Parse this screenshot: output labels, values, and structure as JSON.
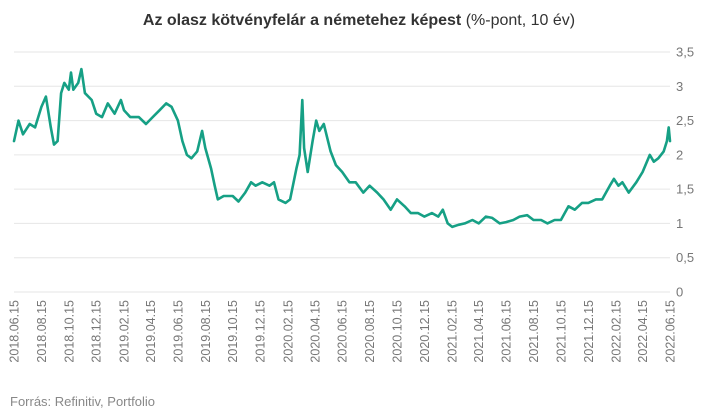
{
  "chart_data": {
    "type": "line",
    "title_bold": "Az olasz kötvényfelár a németehez képest",
    "title_rest": " (%-pont, 10 év)",
    "source": "Forrás: Refinitiv, Portfolio",
    "ylim": [
      0,
      3.5
    ],
    "yticks": [
      {
        "v": 0,
        "label": "0"
      },
      {
        "v": 0.5,
        "label": "0,5"
      },
      {
        "v": 1,
        "label": "1"
      },
      {
        "v": 1.5,
        "label": "1,5"
      },
      {
        "v": 2,
        "label": "2"
      },
      {
        "v": 2.5,
        "label": "2,5"
      },
      {
        "v": 3,
        "label": "3"
      },
      {
        "v": 3.5,
        "label": "3,5"
      }
    ],
    "x_tick_labels": [
      "2018.06.15",
      "2018.08.15",
      "2018.10.15",
      "2018.12.15",
      "2019.02.15",
      "2019.04.15",
      "2019.06.15",
      "2019.08.15",
      "2019.10.15",
      "2019.12.15",
      "2020.02.15",
      "2020.04.15",
      "2020.06.15",
      "2020.08.15",
      "2020.10.15",
      "2020.12.15",
      "2021.02.15",
      "2021.04.15",
      "2021.06.15",
      "2021.08.15",
      "2021.10.15",
      "2021.12.15",
      "2022.02.15",
      "2022.04.15",
      "2022.06.15"
    ],
    "grid": true,
    "line_color": "#16a085",
    "series": [
      {
        "values": [
          {
            "x": "2018.06.15",
            "y": 2.2
          },
          {
            "x": "2018.06.25",
            "y": 2.5
          },
          {
            "x": "2018.07.05",
            "y": 2.3
          },
          {
            "x": "2018.07.20",
            "y": 2.45
          },
          {
            "x": "2018.08.01",
            "y": 2.4
          },
          {
            "x": "2018.08.15",
            "y": 2.7
          },
          {
            "x": "2018.08.25",
            "y": 2.85
          },
          {
            "x": "2018.09.05",
            "y": 2.4
          },
          {
            "x": "2018.09.12",
            "y": 2.15
          },
          {
            "x": "2018.09.20",
            "y": 2.2
          },
          {
            "x": "2018.09.28",
            "y": 2.9
          },
          {
            "x": "2018.10.05",
            "y": 3.05
          },
          {
            "x": "2018.10.15",
            "y": 2.95
          },
          {
            "x": "2018.10.20",
            "y": 3.2
          },
          {
            "x": "2018.10.25",
            "y": 2.95
          },
          {
            "x": "2018.11.05",
            "y": 3.05
          },
          {
            "x": "2018.11.12",
            "y": 3.25
          },
          {
            "x": "2018.11.20",
            "y": 2.9
          },
          {
            "x": "2018.12.05",
            "y": 2.8
          },
          {
            "x": "2018.12.15",
            "y": 2.6
          },
          {
            "x": "2018.12.28",
            "y": 2.55
          },
          {
            "x": "2019.01.10",
            "y": 2.75
          },
          {
            "x": "2019.01.25",
            "y": 2.6
          },
          {
            "x": "2019.02.08",
            "y": 2.8
          },
          {
            "x": "2019.02.15",
            "y": 2.65
          },
          {
            "x": "2019.03.01",
            "y": 2.55
          },
          {
            "x": "2019.03.20",
            "y": 2.55
          },
          {
            "x": "2019.04.05",
            "y": 2.45
          },
          {
            "x": "2019.04.20",
            "y": 2.55
          },
          {
            "x": "2019.05.05",
            "y": 2.65
          },
          {
            "x": "2019.05.20",
            "y": 2.75
          },
          {
            "x": "2019.06.01",
            "y": 2.7
          },
          {
            "x": "2019.06.15",
            "y": 2.5
          },
          {
            "x": "2019.06.25",
            "y": 2.2
          },
          {
            "x": "2019.07.05",
            "y": 2.0
          },
          {
            "x": "2019.07.15",
            "y": 1.95
          },
          {
            "x": "2019.07.28",
            "y": 2.05
          },
          {
            "x": "2019.08.08",
            "y": 2.35
          },
          {
            "x": "2019.08.15",
            "y": 2.1
          },
          {
            "x": "2019.08.28",
            "y": 1.8
          },
          {
            "x": "2019.09.05",
            "y": 1.55
          },
          {
            "x": "2019.09.12",
            "y": 1.35
          },
          {
            "x": "2019.09.25",
            "y": 1.4
          },
          {
            "x": "2019.10.15",
            "y": 1.4
          },
          {
            "x": "2019.10.28",
            "y": 1.32
          },
          {
            "x": "2019.11.12",
            "y": 1.45
          },
          {
            "x": "2019.11.25",
            "y": 1.6
          },
          {
            "x": "2019.12.05",
            "y": 1.55
          },
          {
            "x": "2019.12.20",
            "y": 1.6
          },
          {
            "x": "2020.01.05",
            "y": 1.55
          },
          {
            "x": "2020.01.15",
            "y": 1.6
          },
          {
            "x": "2020.01.25",
            "y": 1.35
          },
          {
            "x": "2020.02.10",
            "y": 1.3
          },
          {
            "x": "2020.02.20",
            "y": 1.35
          },
          {
            "x": "2020.03.05",
            "y": 1.8
          },
          {
            "x": "2020.03.12",
            "y": 2.0
          },
          {
            "x": "2020.03.18",
            "y": 2.8
          },
          {
            "x": "2020.03.22",
            "y": 2.1
          },
          {
            "x": "2020.03.30",
            "y": 1.75
          },
          {
            "x": "2020.04.10",
            "y": 2.2
          },
          {
            "x": "2020.04.18",
            "y": 2.5
          },
          {
            "x": "2020.04.25",
            "y": 2.35
          },
          {
            "x": "2020.05.05",
            "y": 2.45
          },
          {
            "x": "2020.05.20",
            "y": 2.05
          },
          {
            "x": "2020.06.01",
            "y": 1.85
          },
          {
            "x": "2020.06.15",
            "y": 1.75
          },
          {
            "x": "2020.07.01",
            "y": 1.6
          },
          {
            "x": "2020.07.15",
            "y": 1.6
          },
          {
            "x": "2020.08.01",
            "y": 1.45
          },
          {
            "x": "2020.08.15",
            "y": 1.55
          },
          {
            "x": "2020.09.01",
            "y": 1.45
          },
          {
            "x": "2020.09.15",
            "y": 1.35
          },
          {
            "x": "2020.10.01",
            "y": 1.2
          },
          {
            "x": "2020.10.15",
            "y": 1.35
          },
          {
            "x": "2020.11.01",
            "y": 1.25
          },
          {
            "x": "2020.11.15",
            "y": 1.15
          },
          {
            "x": "2020.12.01",
            "y": 1.15
          },
          {
            "x": "2020.12.15",
            "y": 1.1
          },
          {
            "x": "2021.01.01",
            "y": 1.15
          },
          {
            "x": "2021.01.15",
            "y": 1.1
          },
          {
            "x": "2021.01.25",
            "y": 1.2
          },
          {
            "x": "2021.02.05",
            "y": 1.0
          },
          {
            "x": "2021.02.15",
            "y": 0.95
          },
          {
            "x": "2021.03.01",
            "y": 0.98
          },
          {
            "x": "2021.03.15",
            "y": 1.0
          },
          {
            "x": "2021.04.01",
            "y": 1.05
          },
          {
            "x": "2021.04.15",
            "y": 1.0
          },
          {
            "x": "2021.05.01",
            "y": 1.1
          },
          {
            "x": "2021.05.15",
            "y": 1.08
          },
          {
            "x": "2021.06.01",
            "y": 1.0
          },
          {
            "x": "2021.06.15",
            "y": 1.02
          },
          {
            "x": "2021.07.01",
            "y": 1.05
          },
          {
            "x": "2021.07.15",
            "y": 1.1
          },
          {
            "x": "2021.08.01",
            "y": 1.12
          },
          {
            "x": "2021.08.15",
            "y": 1.05
          },
          {
            "x": "2021.09.01",
            "y": 1.05
          },
          {
            "x": "2021.09.15",
            "y": 1.0
          },
          {
            "x": "2021.10.01",
            "y": 1.05
          },
          {
            "x": "2021.10.15",
            "y": 1.05
          },
          {
            "x": "2021.11.01",
            "y": 1.25
          },
          {
            "x": "2021.11.15",
            "y": 1.2
          },
          {
            "x": "2021.12.01",
            "y": 1.3
          },
          {
            "x": "2021.12.15",
            "y": 1.3
          },
          {
            "x": "2022.01.01",
            "y": 1.35
          },
          {
            "x": "2022.01.15",
            "y": 1.35
          },
          {
            "x": "2022.02.01",
            "y": 1.55
          },
          {
            "x": "2022.02.10",
            "y": 1.65
          },
          {
            "x": "2022.02.20",
            "y": 1.55
          },
          {
            "x": "2022.03.01",
            "y": 1.6
          },
          {
            "x": "2022.03.15",
            "y": 1.45
          },
          {
            "x": "2022.04.01",
            "y": 1.6
          },
          {
            "x": "2022.04.15",
            "y": 1.75
          },
          {
            "x": "2022.05.01",
            "y": 2.0
          },
          {
            "x": "2022.05.10",
            "y": 1.9
          },
          {
            "x": "2022.05.20",
            "y": 1.95
          },
          {
            "x": "2022.06.01",
            "y": 2.05
          },
          {
            "x": "2022.06.08",
            "y": 2.2
          },
          {
            "x": "2022.06.12",
            "y": 2.4
          },
          {
            "x": "2022.06.15",
            "y": 2.2
          }
        ]
      }
    ]
  }
}
